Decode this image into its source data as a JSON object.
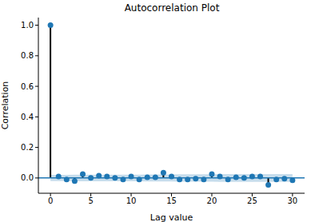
{
  "chart_data": {
    "type": "stem",
    "title": "Autocorrelation Plot",
    "x_label": "Lag value",
    "y_label": "Correlation",
    "x": [
      0,
      1,
      2,
      3,
      4,
      5,
      6,
      7,
      8,
      9,
      10,
      11,
      12,
      13,
      14,
      15,
      16,
      17,
      18,
      19,
      20,
      21,
      22,
      23,
      24,
      25,
      26,
      27,
      28,
      29,
      30
    ],
    "values": [
      1.0,
      0.01,
      -0.01,
      -0.02,
      0.025,
      0.0,
      0.015,
      0.01,
      0.0,
      -0.01,
      0.01,
      -0.01,
      0.005,
      0.005,
      0.035,
      0.01,
      -0.01,
      -0.01,
      -0.005,
      -0.01,
      0.025,
      0.01,
      -0.01,
      0.005,
      0.0,
      0.01,
      0.01,
      -0.045,
      -0.01,
      -0.005,
      -0.015
    ],
    "band_lower": [
      -0.02,
      -0.02,
      -0.02,
      -0.021,
      -0.021,
      -0.021,
      -0.021,
      -0.022,
      -0.022,
      -0.022,
      -0.022,
      -0.022,
      -0.023,
      -0.023,
      -0.023,
      -0.023,
      -0.024,
      -0.024,
      -0.024,
      -0.024,
      -0.024,
      -0.025,
      -0.025,
      -0.025,
      -0.025,
      -0.025,
      -0.026,
      -0.026,
      -0.026,
      -0.026,
      -0.026
    ],
    "band_upper": [
      0.02,
      0.02,
      0.02,
      0.021,
      0.021,
      0.021,
      0.021,
      0.022,
      0.022,
      0.022,
      0.022,
      0.022,
      0.023,
      0.023,
      0.023,
      0.023,
      0.024,
      0.024,
      0.024,
      0.024,
      0.024,
      0.025,
      0.025,
      0.025,
      0.025,
      0.025,
      0.026,
      0.026,
      0.026,
      0.026,
      0.026
    ],
    "color": "#1f77b4",
    "xlim": [
      -1.5,
      31.5
    ],
    "xticks": [
      0,
      5,
      10,
      15,
      20,
      25,
      30
    ],
    "ylim": [
      -0.1,
      1.05
    ],
    "yticks": [
      {
        "value": 0,
        "label": "0.0"
      },
      0.2,
      0.4,
      0.6,
      0.8,
      {
        "value": 1,
        "label": "1.0"
      }
    ],
    "grid": false
  }
}
